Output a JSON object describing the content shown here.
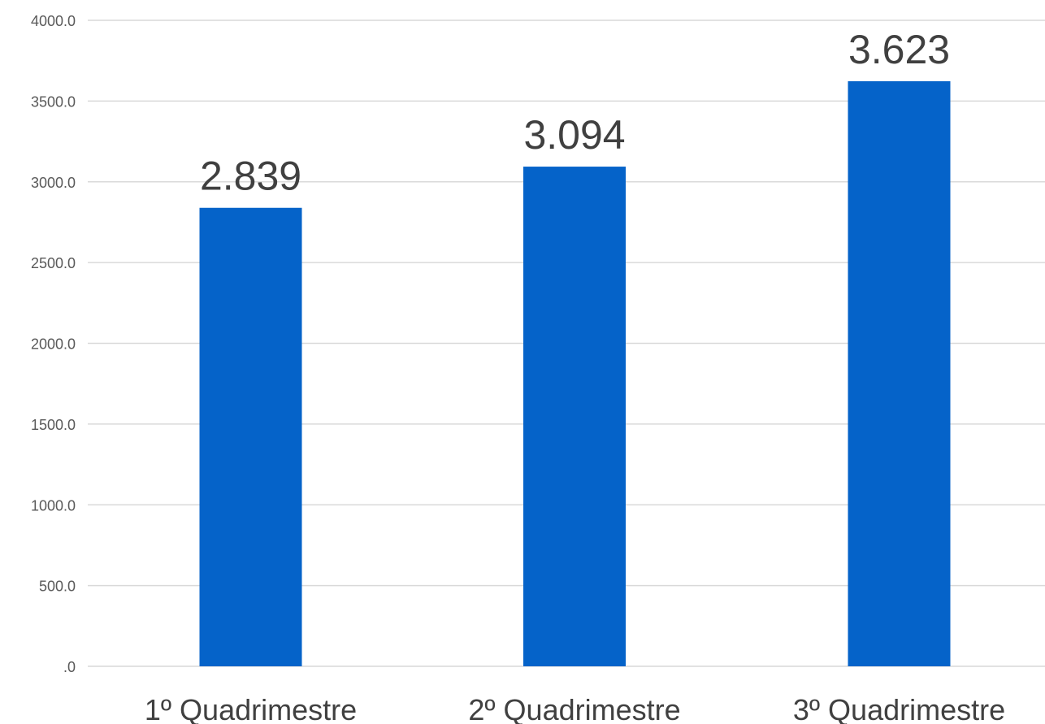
{
  "chart_data": {
    "type": "bar",
    "categories": [
      "1º Quadrimestre",
      "2º Quadrimestre",
      "3º Quadrimestre"
    ],
    "values": [
      2839,
      3094,
      3623
    ],
    "data_labels": [
      "2.839",
      "3.094",
      "3.623"
    ],
    "title": "",
    "xlabel": "",
    "ylabel": "",
    "ylim": [
      0,
      4000
    ],
    "y_ticks": [
      0,
      500,
      1000,
      1500,
      2000,
      2500,
      3000,
      3500,
      4000
    ],
    "y_tick_labels": [
      ".0",
      "500.0",
      "1000.0",
      "1500.0",
      "2000.0",
      "2500.0",
      "3000.0",
      "3500.0",
      "4000.0"
    ],
    "grid": true,
    "legend": "none",
    "bar_color": "#0563c9",
    "grid_color": "#d9d9d9"
  }
}
